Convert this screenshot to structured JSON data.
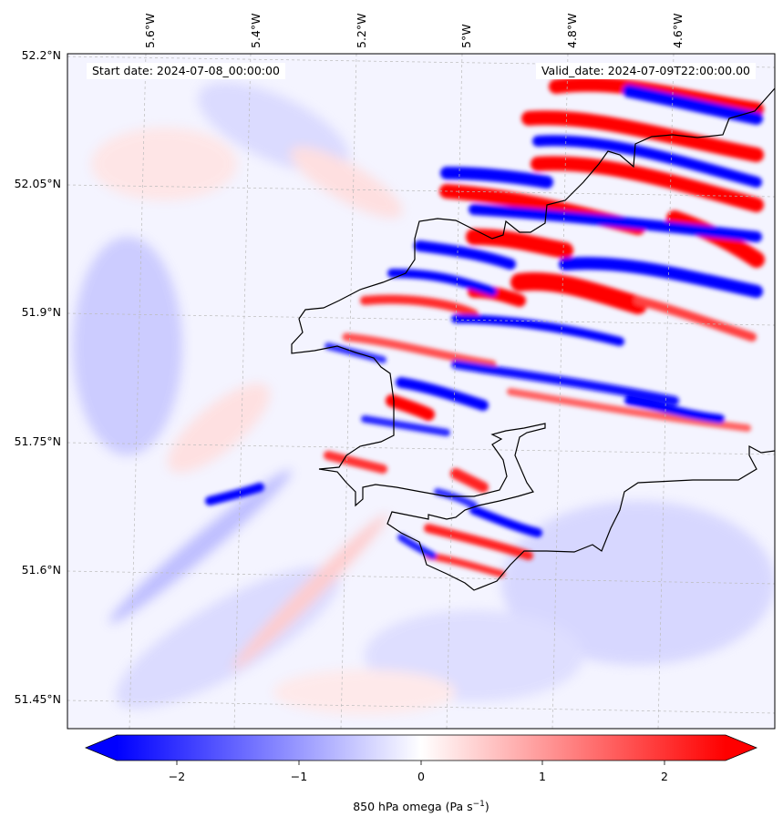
{
  "map": {
    "start_date": "Start date: 2024-07-08_00:00:00",
    "valid_date": "Valid_date: 2024-07-09T22:00:00.00",
    "lon_ticks": [
      "5.6°W",
      "5.4°W",
      "5.2°W",
      "5°W",
      "4.8°W",
      "4.6°W"
    ],
    "lat_ticks": [
      "52.2°N",
      "52.05°N",
      "51.9°N",
      "51.75°N",
      "51.6°N",
      "51.45°N"
    ]
  },
  "colorbar": {
    "title_prefix": "850 hPa omega (Pa s",
    "title_exp": "−1",
    "title_suffix": ")",
    "ticks": [
      "−2",
      "−1",
      "0",
      "1",
      "2"
    ],
    "range": [
      -2.75,
      2.75
    ],
    "colormap": "bwr",
    "min_color": "#0000ff",
    "mid_color": "#ffffff",
    "max_color": "#ff0000",
    "extend": "both"
  },
  "colors": {
    "coastline": "#000000",
    "gridline": "#bbbbbb"
  }
}
